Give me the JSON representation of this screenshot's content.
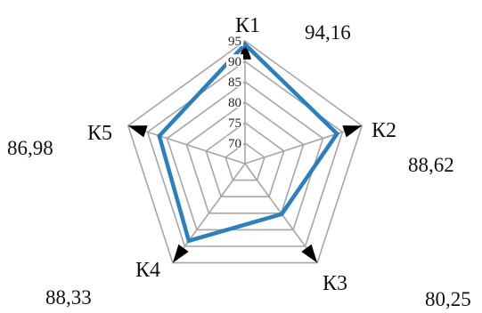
{
  "chart_data": {
    "type": "radar",
    "title": "",
    "categories": [
      "К1",
      "К2",
      "К3",
      "К4",
      "К5"
    ],
    "values": [
      94.16,
      88.62,
      80.25,
      88.33,
      86.98
    ],
    "value_labels": [
      "94,16",
      "88,62",
      "80,25",
      "88,33",
      "86,98"
    ],
    "r_ticks": [
      70,
      75,
      80,
      85,
      90,
      95
    ],
    "r_tick_labels": [
      "70",
      "75",
      "80",
      "85",
      "90",
      "95"
    ],
    "rlim": [
      65,
      95
    ],
    "grid": true,
    "colors": {
      "series": "#2a7fc0",
      "grid": "#a6a6a6",
      "outer_marker": "#000000"
    }
  }
}
